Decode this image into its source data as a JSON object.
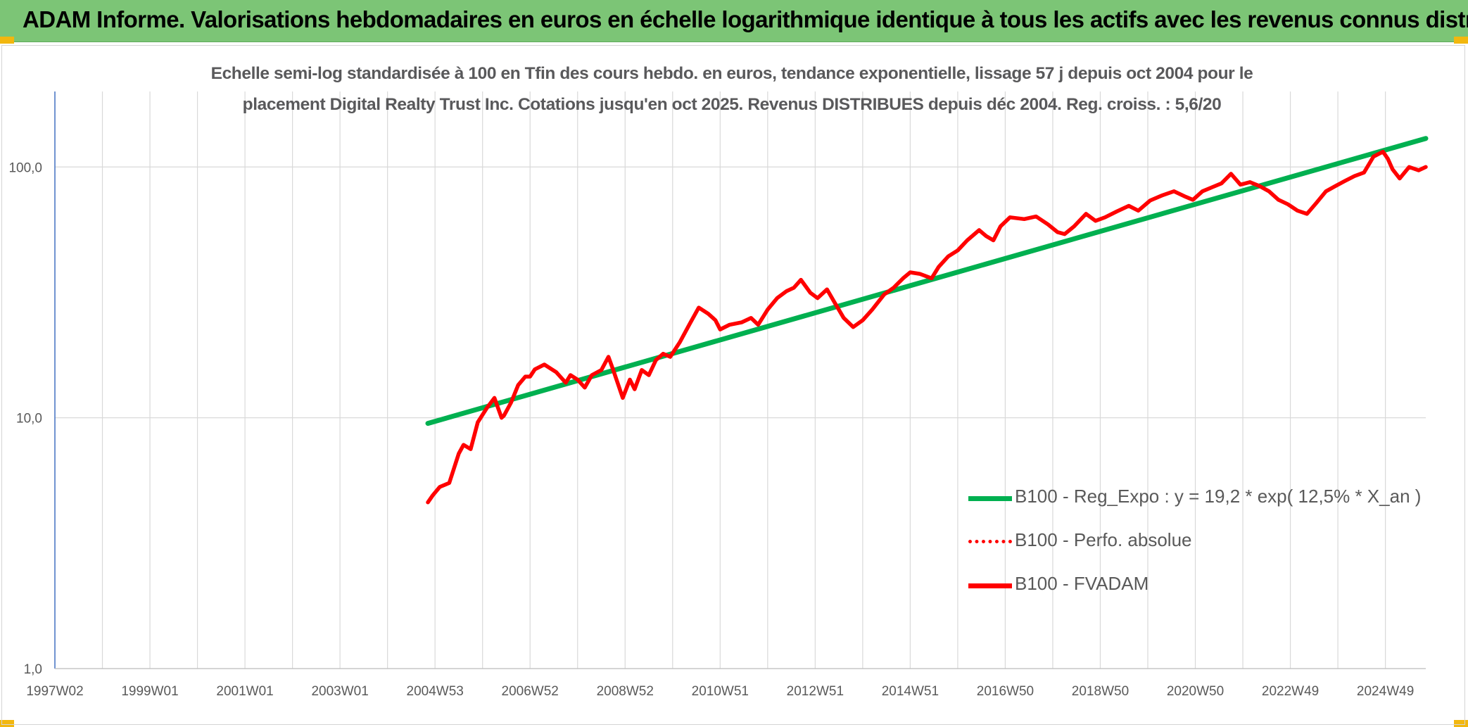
{
  "header": {
    "title": "ADAM Informe. Valorisations hebdomadaires en euros en échelle logarithmique identique à tous les actifs avec les revenus connus distribués"
  },
  "colors": {
    "banner": "#7cc576",
    "accent_corner": "#f2b70f",
    "trend_line": "#00b050",
    "series_line": "#ff0000",
    "grid": "#d9d9d9",
    "text": "#595959"
  },
  "chart_data": {
    "type": "line",
    "y_scale": "log",
    "title_line1": "Echelle semi-log standardisée à 100 en Tfin des cours hebdo. en euros, tendance exponentielle, lissage 57 j depuis oct 2004 pour le",
    "title_line2": "placement Digital Realty Trust Inc. Cotations jusqu'en oct 2025. Revenus DISTRIBUES depuis déc 2004. Reg. croiss. : 5,6/20",
    "ylim": [
      1,
      200
    ],
    "xlim": [
      1997.0,
      2025.85
    ],
    "y_ticks": [
      {
        "value": 1,
        "label": "1,0"
      },
      {
        "value": 10,
        "label": "10,0"
      },
      {
        "value": 100,
        "label": "100,0"
      }
    ],
    "x_ticks": [
      {
        "value": 1997.0,
        "label": "1997W02"
      },
      {
        "value": 1999.0,
        "label": "1999W01"
      },
      {
        "value": 2001.0,
        "label": "2001W01"
      },
      {
        "value": 2003.0,
        "label": "2003W01"
      },
      {
        "value": 2005.0,
        "label": "2004W53"
      },
      {
        "value": 2007.0,
        "label": "2006W52"
      },
      {
        "value": 2009.0,
        "label": "2008W52"
      },
      {
        "value": 2011.0,
        "label": "2010W51"
      },
      {
        "value": 2013.0,
        "label": "2012W51"
      },
      {
        "value": 2015.0,
        "label": "2014W51"
      },
      {
        "value": 2017.0,
        "label": "2016W50"
      },
      {
        "value": 2019.0,
        "label": "2018W50"
      },
      {
        "value": 2021.0,
        "label": "2020W50"
      },
      {
        "value": 2023.0,
        "label": "2022W49"
      },
      {
        "value": 2025.0,
        "label": "2024W49"
      }
    ],
    "legend": [
      {
        "label": "B100 - Reg_Expo : y = 19,2 * exp( 12,5% *  X_an )",
        "style": "green-solid"
      },
      {
        "label": "B100 - Perfo. absolue",
        "style": "red-dotted"
      },
      {
        "label": "B100 - FVADAM",
        "style": "red-solid"
      }
    ],
    "series": [
      {
        "name": "B100 - Reg_Expo",
        "color": "#00b050",
        "x": [
          2004.85,
          2025.85
        ],
        "y": [
          9.5,
          130
        ]
      },
      {
        "name": "B100 - FVADAM",
        "color": "#ff0000",
        "x": [
          2004.85,
          2004.95,
          2005.1,
          2005.3,
          2005.5,
          2005.6,
          2005.75,
          2005.9,
          2006.1,
          2006.25,
          2006.4,
          2006.45,
          2006.6,
          2006.75,
          2006.9,
          2007.0,
          2007.1,
          2007.3,
          2007.55,
          2007.75,
          2007.85,
          2008.0,
          2008.15,
          2008.3,
          2008.5,
          2008.65,
          2008.75,
          2008.95,
          2009.1,
          2009.2,
          2009.35,
          2009.5,
          2009.65,
          2009.8,
          2009.95,
          2010.15,
          2010.35,
          2010.55,
          2010.75,
          2010.9,
          2011.0,
          2011.2,
          2011.45,
          2011.65,
          2011.8,
          2012.0,
          2012.2,
          2012.4,
          2012.55,
          2012.7,
          2012.9,
          2013.05,
          2013.25,
          2013.4,
          2013.6,
          2013.8,
          2014.0,
          2014.2,
          2014.45,
          2014.65,
          2014.85,
          2015.0,
          2015.2,
          2015.45,
          2015.6,
          2015.8,
          2016.0,
          2016.2,
          2016.45,
          2016.6,
          2016.75,
          2016.9,
          2017.1,
          2017.4,
          2017.65,
          2017.9,
          2018.1,
          2018.25,
          2018.45,
          2018.7,
          2018.9,
          2019.1,
          2019.35,
          2019.6,
          2019.8,
          2020.05,
          2020.3,
          2020.55,
          2020.8,
          2020.95,
          2021.15,
          2021.35,
          2021.55,
          2021.75,
          2021.95,
          2022.15,
          2022.35,
          2022.55,
          2022.75,
          2022.95,
          2023.15,
          2023.35,
          2023.55,
          2023.75,
          2023.95,
          2024.15,
          2024.35,
          2024.55,
          2024.75,
          2024.95,
          2025.05,
          2025.15,
          2025.3,
          2025.5,
          2025.7,
          2025.85
        ],
        "y": [
          4.6,
          4.9,
          5.3,
          5.5,
          7.2,
          7.8,
          7.5,
          9.6,
          11.0,
          12.0,
          10.0,
          10.2,
          11.5,
          13.5,
          14.6,
          14.6,
          15.6,
          16.3,
          15.2,
          13.8,
          14.8,
          14.2,
          13.2,
          14.8,
          15.5,
          17.5,
          15.5,
          12.0,
          14.2,
          13.0,
          15.5,
          14.8,
          17.0,
          18.0,
          17.5,
          20.0,
          23.5,
          27.5,
          26.0,
          24.5,
          22.5,
          23.5,
          24.0,
          25.0,
          23.5,
          27.0,
          30.0,
          32.0,
          33.0,
          35.5,
          31.5,
          30.0,
          32.5,
          29.0,
          25.0,
          23.0,
          24.5,
          27.0,
          31.0,
          33.0,
          36.0,
          38.0,
          37.5,
          36.0,
          40.0,
          44.0,
          46.5,
          51.0,
          56.0,
          53.0,
          51.0,
          58.0,
          63.0,
          62.0,
          63.5,
          59.0,
          55.0,
          54.0,
          58.0,
          65.0,
          61.0,
          63.0,
          66.5,
          70.0,
          67.0,
          73.5,
          77.0,
          80.0,
          76.0,
          74.0,
          80.0,
          83.0,
          86.0,
          94.0,
          85.0,
          87.0,
          84.0,
          80.0,
          74.0,
          71.0,
          67.0,
          65.0,
          72.0,
          80.0,
          84.0,
          88.0,
          92.0,
          95.0,
          110.0,
          115.0,
          108.0,
          98.0,
          90.0,
          100.0,
          97.0,
          100.0
        ]
      }
    ]
  }
}
